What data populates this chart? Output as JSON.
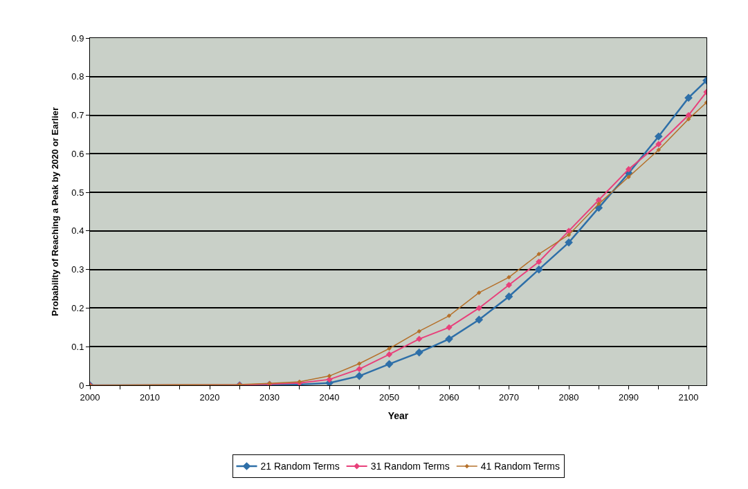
{
  "chart_data": {
    "type": "line",
    "xlabel": "Year",
    "ylabel": "Probability of Reaching a Peak by 2020 or Earlier",
    "x": [
      2000,
      2025,
      2030,
      2035,
      2040,
      2045,
      2050,
      2055,
      2060,
      2065,
      2070,
      2075,
      2080,
      2085,
      2090,
      2095,
      2100,
      2103
    ],
    "series": [
      {
        "name": "21 Random Terms",
        "color": "#2e6fa8",
        "values": [
          0,
          0,
          0.001,
          0.002,
          0.006,
          0.024,
          0.055,
          0.085,
          0.12,
          0.17,
          0.23,
          0.3,
          0.37,
          0.46,
          0.55,
          0.645,
          0.745,
          0.79
        ]
      },
      {
        "name": "31 Random Terms",
        "color": "#e8407a",
        "values": [
          0,
          0.001,
          0.003,
          0.006,
          0.015,
          0.042,
          0.08,
          0.12,
          0.15,
          0.2,
          0.26,
          0.32,
          0.4,
          0.48,
          0.56,
          0.625,
          0.7,
          0.76
        ]
      },
      {
        "name": "41 Random Terms",
        "color": "#b5702a",
        "values": [
          0,
          0.002,
          0.005,
          0.009,
          0.024,
          0.056,
          0.095,
          0.14,
          0.18,
          0.24,
          0.28,
          0.34,
          0.39,
          0.47,
          0.54,
          0.61,
          0.69,
          0.733
        ]
      }
    ],
    "xlim": [
      2000,
      2103
    ],
    "xticks": [
      2000,
      {
        "value": 2005,
        "label": null
      },
      2010,
      {
        "value": 2015,
        "label": null
      },
      2020,
      {
        "value": 2025,
        "label": null
      },
      2030,
      {
        "value": 2035,
        "label": null
      },
      2040,
      {
        "value": 2045,
        "label": null
      },
      2050,
      {
        "value": 2055,
        "label": null
      },
      2060,
      {
        "value": 2065,
        "label": null
      },
      2070,
      {
        "value": 2075,
        "label": null
      },
      2080,
      {
        "value": 2085,
        "label": null
      },
      2090,
      {
        "value": 2095,
        "label": null
      },
      2100
    ],
    "ylim": [
      0,
      0.9
    ],
    "yticks": [
      0,
      0.1,
      0.2,
      0.3,
      0.4,
      0.5,
      0.6,
      0.7,
      0.8,
      0.9
    ],
    "grid": "y",
    "legend": "bottom",
    "marker": "diamond",
    "line_style": "solid"
  }
}
